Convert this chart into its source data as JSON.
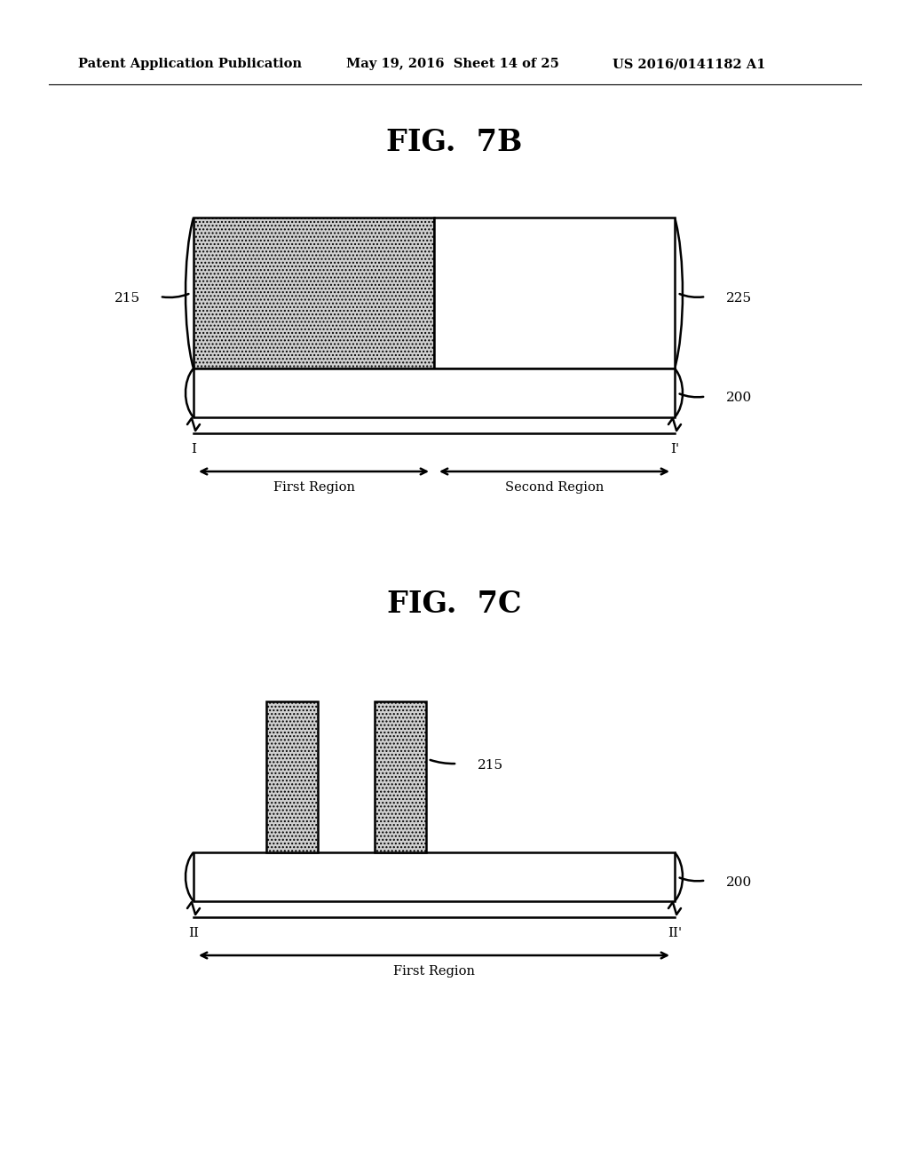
{
  "bg_color": "#ffffff",
  "header_left": "Patent Application Publication",
  "header_mid": "May 19, 2016  Sheet 14 of 25",
  "header_right": "US 2016/0141182 A1",
  "fig7b_title": "FIG.  7B",
  "fig7c_title": "FIG.  7C",
  "label_215_7b": "215",
  "label_225_7b": "225",
  "label_200_7b": "200",
  "label_215_7c": "215",
  "label_200_7c": "200",
  "label_I": "I",
  "label_Iprime": "I’",
  "label_II": "II",
  "label_IIprime": "II’",
  "label_first_region_7b": "First Region",
  "label_second_region_7b": "Second Region",
  "label_first_region_7c": "First Region",
  "line_color": "#000000",
  "text_color": "#000000",
  "hatch_face_color": "#d0d0d0"
}
